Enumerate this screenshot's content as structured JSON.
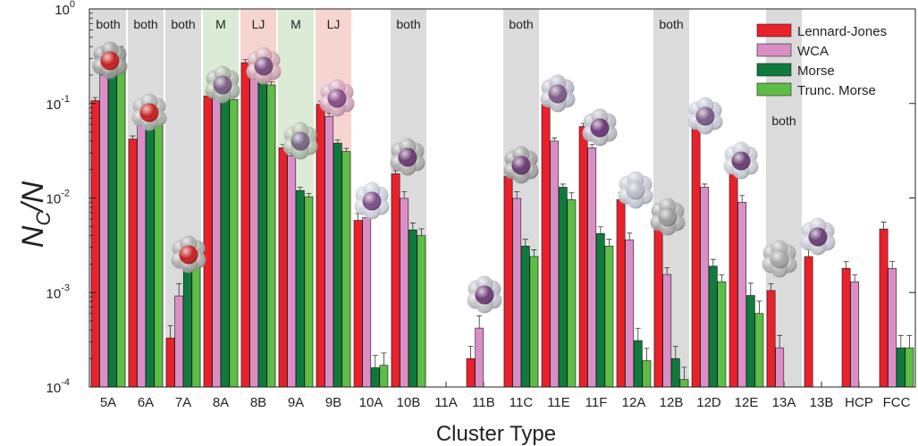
{
  "chart_data": {
    "type": "bar",
    "title": "",
    "xlabel": "Cluster Type",
    "ylabel_main": "N",
    "ylabel_sub": "C",
    "ylabel_tail": "/N",
    "yscale": "log",
    "ylim": [
      0.0001,
      1
    ],
    "y_ticks": [
      {
        "base": "10",
        "exp": "0"
      },
      {
        "base": "10",
        "exp": "-1"
      },
      {
        "base": "10",
        "exp": "-2"
      },
      {
        "base": "10",
        "exp": "-3"
      },
      {
        "base": "10",
        "exp": "-4"
      }
    ],
    "legend_position": "top-right",
    "categories": [
      "5A",
      "6A",
      "7A",
      "8A",
      "8B",
      "9A",
      "9B",
      "10A",
      "10B",
      "11A",
      "11B",
      "11C",
      "11E",
      "11F",
      "12A",
      "12B",
      "12D",
      "12E",
      "13A",
      "13B",
      "HCP",
      "FCC"
    ],
    "series": [
      {
        "name": "Lennard-Jones",
        "color": "#e8212b",
        "values": [
          0.107,
          0.042,
          0.00033,
          0.12,
          0.27,
          0.034,
          0.098,
          0.0058,
          0.018,
          null,
          0.0002,
          0.017,
          0.098,
          0.057,
          0.0096,
          0.0049,
          0.056,
          0.018,
          0.00105,
          0.0024,
          0.0018,
          0.0047
        ]
      },
      {
        "name": "WCA",
        "color": "#d98fc6",
        "values": [
          0.2,
          0.069,
          0.00092,
          0.155,
          0.27,
          0.028,
          0.073,
          0.0062,
          0.0099,
          null,
          0.00042,
          0.0099,
          0.04,
          0.034,
          0.0036,
          0.00155,
          0.013,
          0.009,
          0.00026,
          null,
          0.0013,
          0.0018
        ]
      },
      {
        "name": "Morse",
        "color": "#0f7a3c",
        "values": [
          0.35,
          0.081,
          0.0018,
          0.128,
          0.18,
          0.012,
          0.038,
          0.00016,
          0.0046,
          null,
          null,
          0.0031,
          0.013,
          0.0042,
          0.00031,
          0.0002,
          0.0019,
          0.00093,
          null,
          null,
          null,
          0.00026
        ]
      },
      {
        "name": "Trunc. Morse",
        "color": "#5ebd45",
        "values": [
          0.37,
          0.08,
          0.002,
          0.11,
          0.157,
          0.0103,
          0.031,
          0.00017,
          0.004,
          null,
          null,
          0.0024,
          0.0096,
          0.0031,
          0.00019,
          0.00012,
          0.0013,
          0.0006,
          null,
          null,
          null,
          0.00026
        ]
      }
    ],
    "bands": [
      {
        "category": "5A",
        "label": "both",
        "kind": "both"
      },
      {
        "category": "6A",
        "label": "both",
        "kind": "both"
      },
      {
        "category": "7A",
        "label": "both",
        "kind": "both"
      },
      {
        "category": "8A",
        "label": "M",
        "kind": "M"
      },
      {
        "category": "8B",
        "label": "LJ",
        "kind": "LJ"
      },
      {
        "category": "9A",
        "label": "M",
        "kind": "M"
      },
      {
        "category": "9B",
        "label": "LJ",
        "kind": "LJ"
      },
      {
        "category": "10B",
        "label": "both",
        "kind": "both"
      },
      {
        "category": "11C",
        "label": "both",
        "kind": "both"
      },
      {
        "category": "12B",
        "label": "both",
        "kind": "both"
      },
      {
        "category": "13A",
        "label": "both",
        "kind": "both"
      }
    ],
    "band_colors": {
      "both": "#dcdbdc",
      "M": "#dcebd6",
      "LJ": "#f6d5d0"
    },
    "cluster_images": [
      {
        "category": "5A",
        "core_color": "#c42020",
        "shell_color": "#9a9a9a"
      },
      {
        "category": "6A",
        "core_color": "#c42020",
        "shell_color": "#b0b0b0"
      },
      {
        "category": "7A",
        "core_color": "#c42020",
        "shell_color": "#a8a8a8"
      },
      {
        "category": "8A",
        "core_color": "#7b5c83",
        "shell_color": "#a9b5a6"
      },
      {
        "category": "8B",
        "core_color": "#7b4c7d",
        "shell_color": "#d2a9b4"
      },
      {
        "category": "9A",
        "core_color": "#7c6787",
        "shell_color": "#adbaa9"
      },
      {
        "category": "9B",
        "core_color": "#8a4c86",
        "shell_color": "#d3a6bb"
      },
      {
        "category": "10A",
        "core_color": "#7d4f86",
        "shell_color": "#c9cfdc"
      },
      {
        "category": "10B",
        "core_color": "#6a3b71",
        "shell_color": "#a8a8a8"
      },
      {
        "category": "11B",
        "core_color": "#6d3f77",
        "shell_color": "#bdbdc4"
      },
      {
        "category": "11C",
        "core_color": "#6a3b71",
        "shell_color": "#a0a0a0"
      },
      {
        "category": "11E",
        "core_color": "#7d5a88",
        "shell_color": "#b9bcc8"
      },
      {
        "category": "11F",
        "core_color": "#6c3775",
        "shell_color": "#b8b8c0"
      },
      {
        "category": "12A",
        "core_color": "#b8bcc8",
        "shell_color": "#c4c8d2"
      },
      {
        "category": "12B",
        "core_color": "#9a9a9a",
        "shell_color": "#a8a8a8"
      },
      {
        "category": "12D",
        "core_color": "#7e5b89",
        "shell_color": "#c3c7d2"
      },
      {
        "category": "12E",
        "core_color": "#6c3f77",
        "shell_color": "#c6c9d3"
      },
      {
        "category": "13A",
        "core_color": "#a5a5a5",
        "shell_color": "#b0b0b0"
      },
      {
        "category": "13B",
        "core_color": "#6c3f77",
        "shell_color": "#c4c7d1"
      }
    ]
  }
}
